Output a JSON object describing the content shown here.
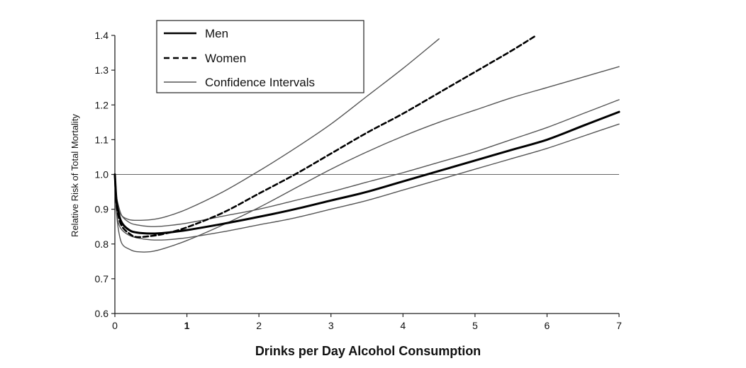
{
  "chart_data": {
    "type": "line",
    "title": "",
    "xlabel": "Drinks per Day Alcohol Consumption",
    "ylabel": "Relative Risk of Total Mortality",
    "xlim": [
      0,
      7
    ],
    "ylim": [
      0.6,
      1.4
    ],
    "xticks": [
      "0",
      "1",
      "2",
      "3",
      "4",
      "5",
      "6",
      "7"
    ],
    "yticks": [
      "0.6",
      "0.7",
      "0.8",
      "0.9",
      "1.0",
      "1.1",
      "1.2",
      "1.3",
      "1.4"
    ],
    "reference_line": 1.0,
    "legend_position": "top-left",
    "legend": [
      "Men",
      "Women",
      "Confidence Intervals"
    ],
    "series": [
      {
        "name": "Men",
        "style": "solid-thick",
        "x": [
          0,
          0.02,
          0.05,
          0.1,
          0.2,
          0.3,
          0.5,
          0.7,
          1,
          1.5,
          2,
          2.5,
          3,
          3.5,
          4,
          4.5,
          5,
          5.5,
          6,
          6.5,
          7
        ],
        "y": [
          1.0,
          0.93,
          0.89,
          0.86,
          0.84,
          0.833,
          0.83,
          0.832,
          0.84,
          0.858,
          0.878,
          0.9,
          0.925,
          0.95,
          0.98,
          1.01,
          1.04,
          1.07,
          1.1,
          1.14,
          1.18
        ]
      },
      {
        "name": "Women",
        "style": "dashed-thick",
        "x": [
          0,
          0.02,
          0.05,
          0.1,
          0.2,
          0.3,
          0.5,
          0.7,
          1,
          1.5,
          2,
          2.5,
          3,
          3.5,
          4,
          4.5,
          5,
          5.5,
          5.85
        ],
        "y": [
          1.0,
          0.92,
          0.88,
          0.85,
          0.83,
          0.82,
          0.823,
          0.83,
          0.848,
          0.89,
          0.945,
          1.0,
          1.06,
          1.12,
          1.175,
          1.235,
          1.295,
          1.355,
          1.4
        ]
      },
      {
        "name": "Women CI upper",
        "style": "thin",
        "x": [
          0,
          0.02,
          0.05,
          0.1,
          0.2,
          0.3,
          0.5,
          0.7,
          1,
          1.5,
          2,
          2.5,
          3,
          3.5,
          4,
          4.5
        ],
        "y": [
          1.0,
          0.93,
          0.9,
          0.88,
          0.87,
          0.868,
          0.87,
          0.878,
          0.9,
          0.95,
          1.01,
          1.075,
          1.145,
          1.225,
          1.305,
          1.39
        ]
      },
      {
        "name": "Women CI lower",
        "style": "thin",
        "x": [
          0,
          0.02,
          0.05,
          0.1,
          0.2,
          0.3,
          0.5,
          0.7,
          1,
          1.5,
          2,
          2.5,
          3,
          3.5,
          4,
          4.5,
          5,
          5.5,
          6,
          6.5,
          7
        ],
        "y": [
          1.0,
          0.9,
          0.84,
          0.8,
          0.785,
          0.778,
          0.778,
          0.788,
          0.81,
          0.855,
          0.905,
          0.96,
          1.015,
          1.065,
          1.11,
          1.15,
          1.185,
          1.22,
          1.25,
          1.28,
          1.31
        ]
      },
      {
        "name": "Men CI upper",
        "style": "thin",
        "x": [
          0,
          0.02,
          0.05,
          0.1,
          0.2,
          0.3,
          0.5,
          0.7,
          1,
          1.5,
          2,
          2.5,
          3,
          3.5,
          4,
          4.5,
          5,
          5.5,
          6,
          6.5,
          7
        ],
        "y": [
          1.0,
          0.94,
          0.91,
          0.88,
          0.862,
          0.855,
          0.85,
          0.852,
          0.86,
          0.88,
          0.9,
          0.925,
          0.95,
          0.978,
          1.005,
          1.035,
          1.065,
          1.1,
          1.135,
          1.175,
          1.215
        ]
      },
      {
        "name": "Men CI lower",
        "style": "thin",
        "x": [
          0,
          0.02,
          0.05,
          0.1,
          0.2,
          0.3,
          0.5,
          0.7,
          1,
          1.5,
          2,
          2.5,
          3,
          3.5,
          4,
          4.5,
          5,
          5.5,
          6,
          6.5,
          7
        ],
        "y": [
          1.0,
          0.9,
          0.86,
          0.84,
          0.825,
          0.818,
          0.812,
          0.812,
          0.818,
          0.835,
          0.855,
          0.875,
          0.9,
          0.925,
          0.955,
          0.985,
          1.015,
          1.045,
          1.075,
          1.11,
          1.145
        ]
      }
    ]
  }
}
